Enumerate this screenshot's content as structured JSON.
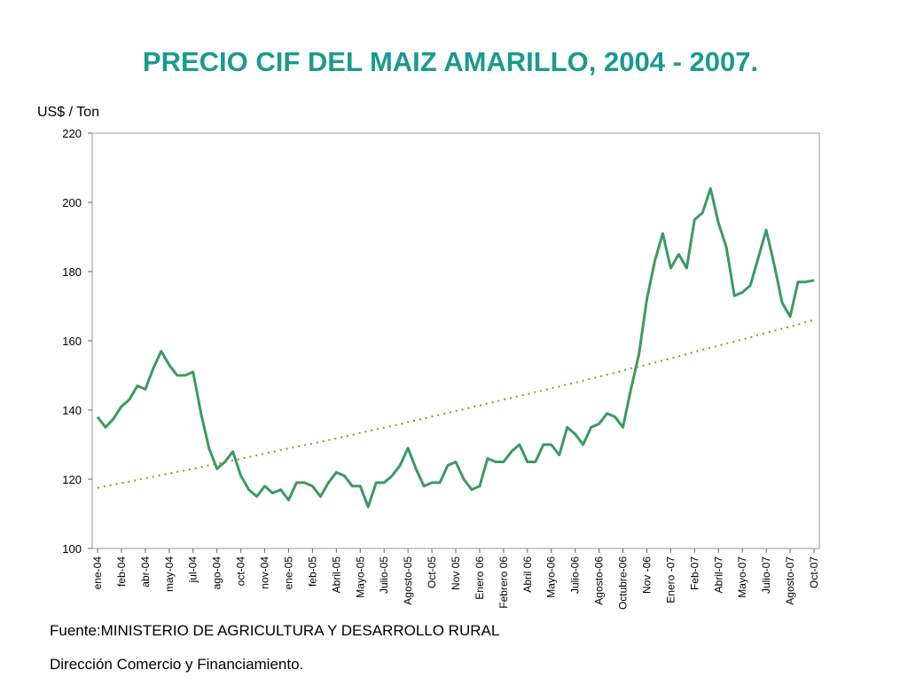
{
  "chart_data": {
    "type": "line",
    "title": "PRECIO CIF DEL MAIZ AMARILLO, 2004 - 2007.",
    "y_label": "US$ / Ton",
    "source": "Fuente:MINISTERIO DE AGRICULTURA Y DESARROLLO RURAL",
    "note": "Dirección Comercio y Financiamiento.",
    "categories": [
      "ene-04",
      null,
      null,
      "feb-04",
      null,
      null,
      "abr-04",
      null,
      null,
      "may-04",
      null,
      null,
      "jul-04",
      null,
      null,
      "ago-04",
      null,
      null,
      "oct-04",
      null,
      null,
      "nov-04",
      null,
      null,
      "ene-05",
      null,
      null,
      "feb-05",
      null,
      null,
      "Abril-05",
      null,
      null,
      "Mayo-05",
      null,
      null,
      "Julio-05",
      null,
      null,
      "Agosto-05",
      null,
      null,
      "Oct-05",
      null,
      null,
      "Nov 05",
      null,
      null,
      "Enero 06",
      null,
      null,
      "Febrero 06",
      null,
      null,
      "Abril  06",
      null,
      null,
      "Mayo-06",
      null,
      null,
      "Julio-06",
      null,
      null,
      "Agosto-06",
      null,
      null,
      "Octubre-06",
      null,
      null,
      "Nov -06",
      null,
      null,
      "Enero -07",
      null,
      null,
      "Feb-07",
      null,
      null,
      "Abril-07",
      null,
      null,
      "Mayo-07",
      null,
      null,
      "Julio-07",
      null,
      null,
      "Agosto-07",
      null,
      null,
      "Oct-07"
    ],
    "series": [
      {
        "color": "#3a9a62",
        "style": "solid",
        "values": [
          138,
          135,
          137.5,
          141,
          143,
          147,
          146,
          152,
          157,
          153,
          150,
          150,
          151,
          139,
          129,
          123,
          125,
          128,
          121,
          117,
          115,
          118,
          116,
          117,
          114,
          119,
          119,
          118,
          115,
          119,
          122,
          121,
          118,
          118,
          112,
          119,
          119,
          121,
          124,
          129,
          123,
          118,
          119,
          119,
          124,
          125,
          120,
          117,
          118,
          126,
          125,
          125,
          128,
          130,
          125,
          125,
          130,
          130,
          127,
          135,
          133,
          130,
          135,
          136,
          139,
          138,
          135,
          146,
          156,
          172,
          183,
          191,
          181,
          185,
          181,
          195,
          197,
          204,
          194,
          187,
          173,
          174,
          176,
          184,
          192,
          182,
          171,
          167,
          177,
          177,
          177.5
        ]
      },
      {
        "color": "#8a9a1a",
        "style": "dotted",
        "values": [
          117.5,
          118.0,
          118.4,
          118.9,
          119.3,
          119.8,
          120.3,
          120.7,
          121.2,
          121.6,
          122.1,
          122.6,
          123.0,
          123.5,
          124.0,
          124.5,
          125.0,
          125.4,
          125.9,
          126.4,
          126.9,
          127.4,
          127.9,
          128.4,
          128.9,
          129.4,
          129.8,
          130.3,
          130.8,
          131.3,
          131.8,
          132.3,
          132.8,
          133.4,
          133.9,
          134.4,
          134.9,
          135.4,
          135.9,
          136.5,
          137.0,
          137.5,
          138.1,
          138.6,
          139.2,
          139.7,
          140.2,
          140.8,
          141.3,
          141.9,
          142.4,
          143.0,
          143.5,
          144.1,
          144.6,
          145.2,
          145.7,
          146.3,
          146.8,
          147.4,
          147.9,
          148.5,
          149.1,
          149.6,
          150.2,
          150.8,
          151.4,
          152.0,
          152.5,
          153.1,
          153.7,
          154.3,
          154.9,
          155.5,
          156.1,
          156.8,
          157.4,
          158.0,
          158.6,
          159.2,
          159.8,
          160.4,
          161.0,
          161.7,
          162.3,
          162.9,
          163.5,
          164.1,
          164.7,
          165.4,
          166.0
        ]
      }
    ],
    "ylim": [
      100,
      220
    ],
    "yticks": [
      100,
      120,
      140,
      160,
      180,
      200,
      220
    ],
    "grid": false
  }
}
